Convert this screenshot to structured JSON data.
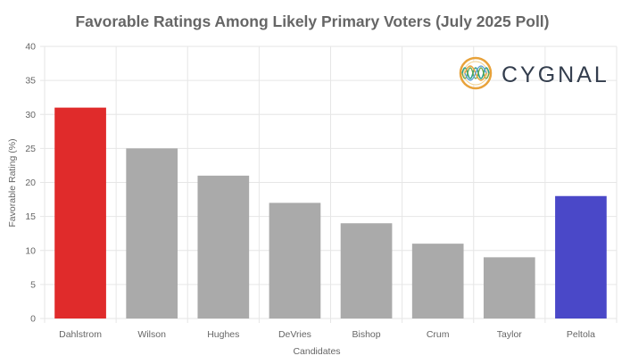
{
  "chart_data": {
    "type": "bar",
    "title": "Favorable Ratings Among Likely Primary Voters (July 2025 Poll)",
    "xlabel": "Candidates",
    "ylabel": "Favorable Rating (%)",
    "categories": [
      "Dahlstrom",
      "Wilson",
      "Hughes",
      "DeVries",
      "Bishop",
      "Crum",
      "Taylor",
      "Peltola"
    ],
    "values": [
      31,
      25,
      21,
      17,
      14,
      11,
      9,
      18
    ],
    "bar_colors": [
      "#e02b2b",
      "#aaaaaa",
      "#aaaaaa",
      "#aaaaaa",
      "#aaaaaa",
      "#aaaaaa",
      "#aaaaaa",
      "#4a48c8"
    ],
    "ylim": [
      0,
      40
    ],
    "yticks": [
      0,
      5,
      10,
      15,
      20,
      25,
      30,
      35,
      40
    ],
    "grid": true,
    "legend": "none"
  },
  "logo": {
    "text": "CYGNAL",
    "icon": "cygnal-wave-logo-icon"
  },
  "colors": {
    "text": "#666666",
    "grid": "#e6e6e6",
    "logo_text": "#333d4d"
  }
}
